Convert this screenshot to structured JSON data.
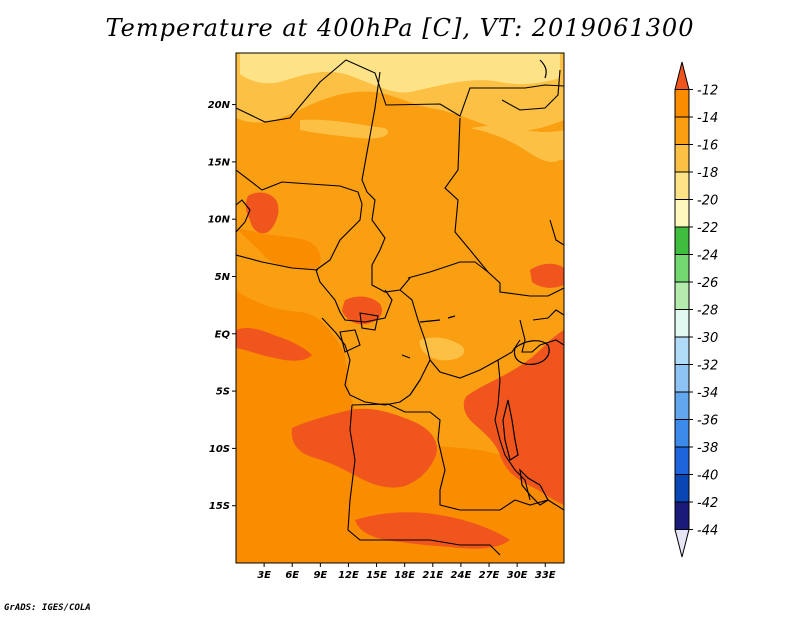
{
  "title": "Temperature at 400hPa [C], VT: 2019061300",
  "credit": "GrADS: IGES/COLA",
  "map": {
    "lat_labels": [
      "20N",
      "15N",
      "10N",
      "5N",
      "EQ",
      "5S",
      "10S",
      "15S"
    ],
    "lat_values": [
      20,
      15,
      10,
      5,
      0,
      -5,
      -10,
      -15
    ],
    "lon_labels": [
      "3E",
      "6E",
      "9E",
      "12E",
      "15E",
      "18E",
      "21E",
      "24E",
      "27E",
      "30E",
      "33E"
    ],
    "lon_values": [
      3,
      6,
      9,
      12,
      15,
      18,
      21,
      24,
      27,
      30,
      33
    ],
    "lon_range": [
      0,
      35
    ],
    "lat_range": [
      -20,
      24.5
    ],
    "background_level": "-16 to -14"
  },
  "colorbar": {
    "labels": [
      "-12",
      "-14",
      "-16",
      "-18",
      "-20",
      "-22",
      "-24",
      "-26",
      "-28",
      "-30",
      "-32",
      "-34",
      "-36",
      "-38",
      "-40",
      "-42",
      "-44"
    ],
    "colors": [
      "#f0551e",
      "#fa8c00",
      "#fa9e12",
      "#fcc044",
      "#fde287",
      "#fef8bf",
      "#3ebd3e",
      "#72d870",
      "#b4ecad",
      "#e1f9f0",
      "#b0dcf8",
      "#8ec4f4",
      "#62a6ee",
      "#3c8aea",
      "#1e64da",
      "#0a46b4",
      "#1a1a78",
      "#e6e6f8"
    ]
  }
}
